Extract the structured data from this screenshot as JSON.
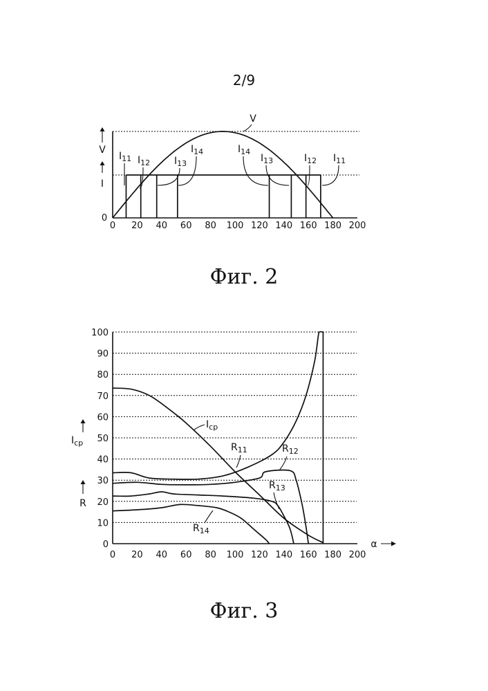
{
  "page": {
    "number": "2/9"
  },
  "fig2": {
    "caption": "Фиг. 2",
    "axis": {
      "v_label": "V",
      "i_label": "I",
      "origin_label": "0",
      "xticks": [
        "0",
        "20",
        "40",
        "60",
        "80",
        "100",
        "120",
        "140",
        "160",
        "180",
        "200"
      ]
    },
    "curve_label": "V",
    "pulse_labels": [
      {
        "main": "I",
        "sub": "11"
      },
      {
        "main": "I",
        "sub": "12"
      },
      {
        "main": "I",
        "sub": "13"
      },
      {
        "main": "I",
        "sub": "14"
      },
      {
        "main": "I",
        "sub": "14"
      },
      {
        "main": "I",
        "sub": "13"
      },
      {
        "main": "I",
        "sub": "12"
      },
      {
        "main": "I",
        "sub": "11"
      }
    ]
  },
  "fig3": {
    "caption": "Фиг. 3",
    "axis": {
      "x_label": "α",
      "ylabel_icp_main": "I",
      "ylabel_icp_sub": "cp",
      "ylabel_r": "R"
    },
    "curve_labels": {
      "icp": {
        "main": "I",
        "sub": "cp"
      },
      "r11": {
        "main": "R",
        "sub": "11"
      },
      "r12": {
        "main": "R",
        "sub": "12"
      },
      "r13": {
        "main": "R",
        "sub": "13"
      },
      "r14": {
        "main": "R",
        "sub": "14"
      }
    }
  },
  "chart_data": [
    {
      "type": "line",
      "x": [
        0,
        20,
        40,
        60,
        80,
        90,
        100,
        120,
        140,
        160,
        180
      ],
      "series": [
        {
          "name": "V",
          "values": [
            0,
            0.34,
            0.64,
            0.87,
            0.98,
            1.0,
            0.98,
            0.87,
            0.64,
            0.34,
            0
          ]
        },
        {
          "name": "I",
          "values": [
            0.5,
            0.5,
            0.5,
            0.5,
            0.5,
            0.5,
            0.5,
            0.5,
            0.5,
            0.5,
            0.5
          ]
        }
      ],
      "pulse_edges_x": [
        11,
        23,
        36,
        53,
        128,
        146,
        158,
        170
      ],
      "xticks": [
        0,
        20,
        40,
        60,
        80,
        100,
        120,
        140,
        160,
        180,
        200
      ],
      "xlim": [
        0,
        200
      ],
      "grid": "dotted horizontal at V peak and I level"
    },
    {
      "type": "line",
      "x_label": "α",
      "xlim": [
        0,
        200
      ],
      "ylim": [
        0,
        100
      ],
      "xticks": [
        0,
        20,
        40,
        60,
        80,
        100,
        120,
        140,
        160,
        180,
        200
      ],
      "yticks": [
        0,
        10,
        20,
        30,
        40,
        50,
        60,
        70,
        80,
        90,
        100
      ],
      "grid": "dotted horizontal",
      "series": [
        {
          "name": "Icp",
          "points": [
            [
              0,
              73.5
            ],
            [
              15,
              73
            ],
            [
              30,
              70
            ],
            [
              45,
              64
            ],
            [
              60,
              57
            ],
            [
              80,
              46
            ],
            [
              100,
              34
            ],
            [
              120,
              23
            ],
            [
              140,
              12
            ],
            [
              160,
              4
            ],
            [
              172,
              0.5
            ]
          ]
        },
        {
          "name": "R11",
          "points": [
            [
              0,
              33.5
            ],
            [
              15,
              33.5
            ],
            [
              30,
              31
            ],
            [
              50,
              30.5
            ],
            [
              70,
              30.5
            ],
            [
              90,
              32
            ],
            [
              110,
              36
            ],
            [
              130,
              42
            ],
            [
              140,
              48
            ],
            [
              150,
              58
            ],
            [
              158,
              70
            ],
            [
              165,
              86
            ],
            [
              168,
              98
            ],
            [
              169,
              100
            ],
            [
              172,
              100
            ]
          ]
        },
        {
          "name": "R12",
          "points": [
            [
              0,
              28.5
            ],
            [
              20,
              29
            ],
            [
              40,
              28
            ],
            [
              60,
              27.8
            ],
            [
              80,
              28
            ],
            [
              100,
              29
            ],
            [
              120,
              31
            ],
            [
              125,
              34
            ],
            [
              145,
              34.5
            ],
            [
              150,
              30
            ],
            [
              155,
              18
            ],
            [
              158,
              8
            ],
            [
              160,
              0
            ]
          ]
        },
        {
          "name": "R13",
          "points": [
            [
              0,
              22.5
            ],
            [
              15,
              22.5
            ],
            [
              30,
              23.5
            ],
            [
              40,
              24.5
            ],
            [
              50,
              23.5
            ],
            [
              70,
              23
            ],
            [
              90,
              22.5
            ],
            [
              115,
              21.5
            ],
            [
              130,
              20
            ],
            [
              135,
              18
            ],
            [
              140,
              13
            ],
            [
              145,
              7
            ],
            [
              148,
              0
            ]
          ]
        },
        {
          "name": "R14",
          "points": [
            [
              0,
              15.5
            ],
            [
              20,
              16
            ],
            [
              40,
              17
            ],
            [
              55,
              18.5
            ],
            [
              70,
              18
            ],
            [
              85,
              17
            ],
            [
              95,
              15
            ],
            [
              105,
              12
            ],
            [
              115,
              7
            ],
            [
              125,
              2
            ],
            [
              128,
              0
            ]
          ]
        }
      ]
    }
  ]
}
